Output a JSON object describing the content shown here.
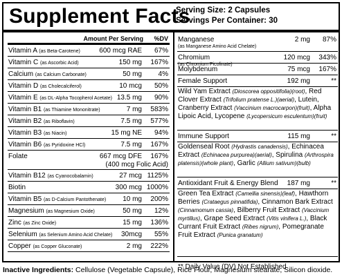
{
  "title": "Supplement Facts",
  "serving_size": "Serving Size: 2 Capsules",
  "servings_per_container": "Servings Per Container: 30",
  "col_amount": "Amount Per Serving",
  "col_dv": "%DV",
  "left_rows": [
    {
      "name": "Vitamin A",
      "sub": "(as Beta-Carotene)",
      "amount": "600 mcg RAE",
      "dv": "67%"
    },
    {
      "name": "Vitamin C",
      "sub": "(as Ascorbic Acid)",
      "amount": "150 mg",
      "dv": "167%"
    },
    {
      "name": "Calcium",
      "sub": "(as Calcium Carbonate)",
      "amount": "50 mg",
      "dv": "4%"
    },
    {
      "name": "Vitamin D",
      "sub": "(as Cholecalciferol)",
      "amount": "10 mcg",
      "dv": "50%"
    },
    {
      "name": "Vitamin E",
      "sub": "(as DL-Alpha Tocopherol Acetate)",
      "amount": "13.5 mg",
      "dv": "90%"
    },
    {
      "name": "Vitamin B1",
      "sub": "(as Thiamine Mononitrate)",
      "amount": "7 mg",
      "dv": "583%"
    },
    {
      "name": "Vitamin B2",
      "sub": "(as Riboflavin)",
      "amount": "7.5 mg",
      "dv": "577%"
    },
    {
      "name": "Vitamin B3",
      "sub": "(as Niacin)",
      "amount": "15 mg NE",
      "dv": "94%"
    },
    {
      "name": "Vitamin B6",
      "sub": "(as Pyridoxine HCl)",
      "amount": "7.5 mg",
      "dv": "167%"
    },
    {
      "name": "Folate",
      "sub": "",
      "amount": "667 mcg DFE",
      "amount2": "(400 mcg Folic Acid)",
      "dv": "167%"
    },
    {
      "name": "Vitamin B12",
      "sub": "(as Cyanocobalamin)",
      "amount": "27 mcg",
      "dv": "1125%"
    },
    {
      "name": "Biotin",
      "sub": "",
      "amount": "300 mcg",
      "dv": "1000%"
    },
    {
      "name": "Vitamin B5",
      "sub": "(as D-Calcium Pantothenate)",
      "amount": "10 mg",
      "dv": "200%"
    },
    {
      "name": "Magnesium",
      "sub": "(as Magnesium Oxide)",
      "amount": "50 mg",
      "dv": "12%"
    },
    {
      "name": "Zinc",
      "sub": "(as Zinc Oxide)",
      "amount": "15 mg",
      "dv": "136%"
    },
    {
      "name": "Selenium",
      "sub": "(as Selenium Amino Acid Chelate)",
      "amount": "30mcg",
      "dv": "55%"
    },
    {
      "name": "Copper",
      "sub": "(as Copper Gluconate)",
      "amount": "2 mg",
      "dv": "222%"
    }
  ],
  "right_rows": [
    {
      "name": "Manganese",
      "sub": "(as Manganese Amino Acid Chelate)",
      "amount": "2 mg",
      "dv": "87%"
    },
    {
      "name": "Chromium",
      "sub": "(as Chromium Picolinate)",
      "amount": "120 mcg",
      "dv": "343%"
    },
    {
      "name": "Molybdenum",
      "sub": "",
      "amount": "75 mcg",
      "dv": "167%"
    },
    {
      "name": "Female Support",
      "sub": "",
      "amount": "192 mg",
      "dv": "**"
    }
  ],
  "female_desc": [
    {
      "t": "Wild Yam Extract "
    },
    {
      "i": "(Dioscorea oppositifolia)(root)"
    },
    {
      "t": ", Red Clover Extract "
    },
    {
      "i": "(Trifolium pratense L.)(aerial)"
    },
    {
      "t": ", Lutein, Cranberry Extract "
    },
    {
      "i": "(Vaccinium macrocarpon)(fruit)"
    },
    {
      "t": ", Alpha Lipoic Acid, Lycopene "
    },
    {
      "i": "(Lycopersicum esculentum)(fruit)"
    }
  ],
  "immune_row": {
    "name": "Immune Support",
    "amount": "115 mg",
    "dv": "**"
  },
  "immune_desc": [
    {
      "t": "Goldenseal Root "
    },
    {
      "i": "(Hydrastis canadensis)"
    },
    {
      "t": ", Echinacea Extract "
    },
    {
      "i": "(Echinacea purpurea)(aerial)"
    },
    {
      "t": ", Spirulina "
    },
    {
      "i": "(Arthrospira platensis)(whole plant)"
    },
    {
      "t": ", Garlic "
    },
    {
      "i": "(Allium sativum)(bulb)"
    }
  ],
  "antioxidant_row": {
    "name": "Antioxidant Fruit & Energy Blend",
    "amount": "187 mg",
    "dv": "**"
  },
  "antioxidant_desc": [
    {
      "t": "Green Tea Extract "
    },
    {
      "i": "(Camellia sinensis)(leaf)"
    },
    {
      "t": ", Hawthorn Berries "
    },
    {
      "i": "(Crataegus pinnatifida)"
    },
    {
      "t": ", Cinnamon Bark Extract "
    },
    {
      "i": "(Cinnamomum cassia)"
    },
    {
      "t": ", Bilberry Fruit Extract "
    },
    {
      "i": "(Vaccinium myrtillus)"
    },
    {
      "t": ", Grape Seed Extract "
    },
    {
      "i": "(Vitis vinifera L.)"
    },
    {
      "t": ", Black Currant Fruit Extract "
    },
    {
      "i": "(Ribes nigrum)"
    },
    {
      "t": ", Pomegranate Fruit Extract "
    },
    {
      "i": "(Punica granatum)"
    }
  ],
  "footnote": "** Daily Value (DV) Not Established",
  "inactive_label": "Inactive Ingredients:",
  "inactive_text": " Cellulose (Vegetable Capsule), Rice Flour, Magnesium stearate, Silicon dioxide."
}
